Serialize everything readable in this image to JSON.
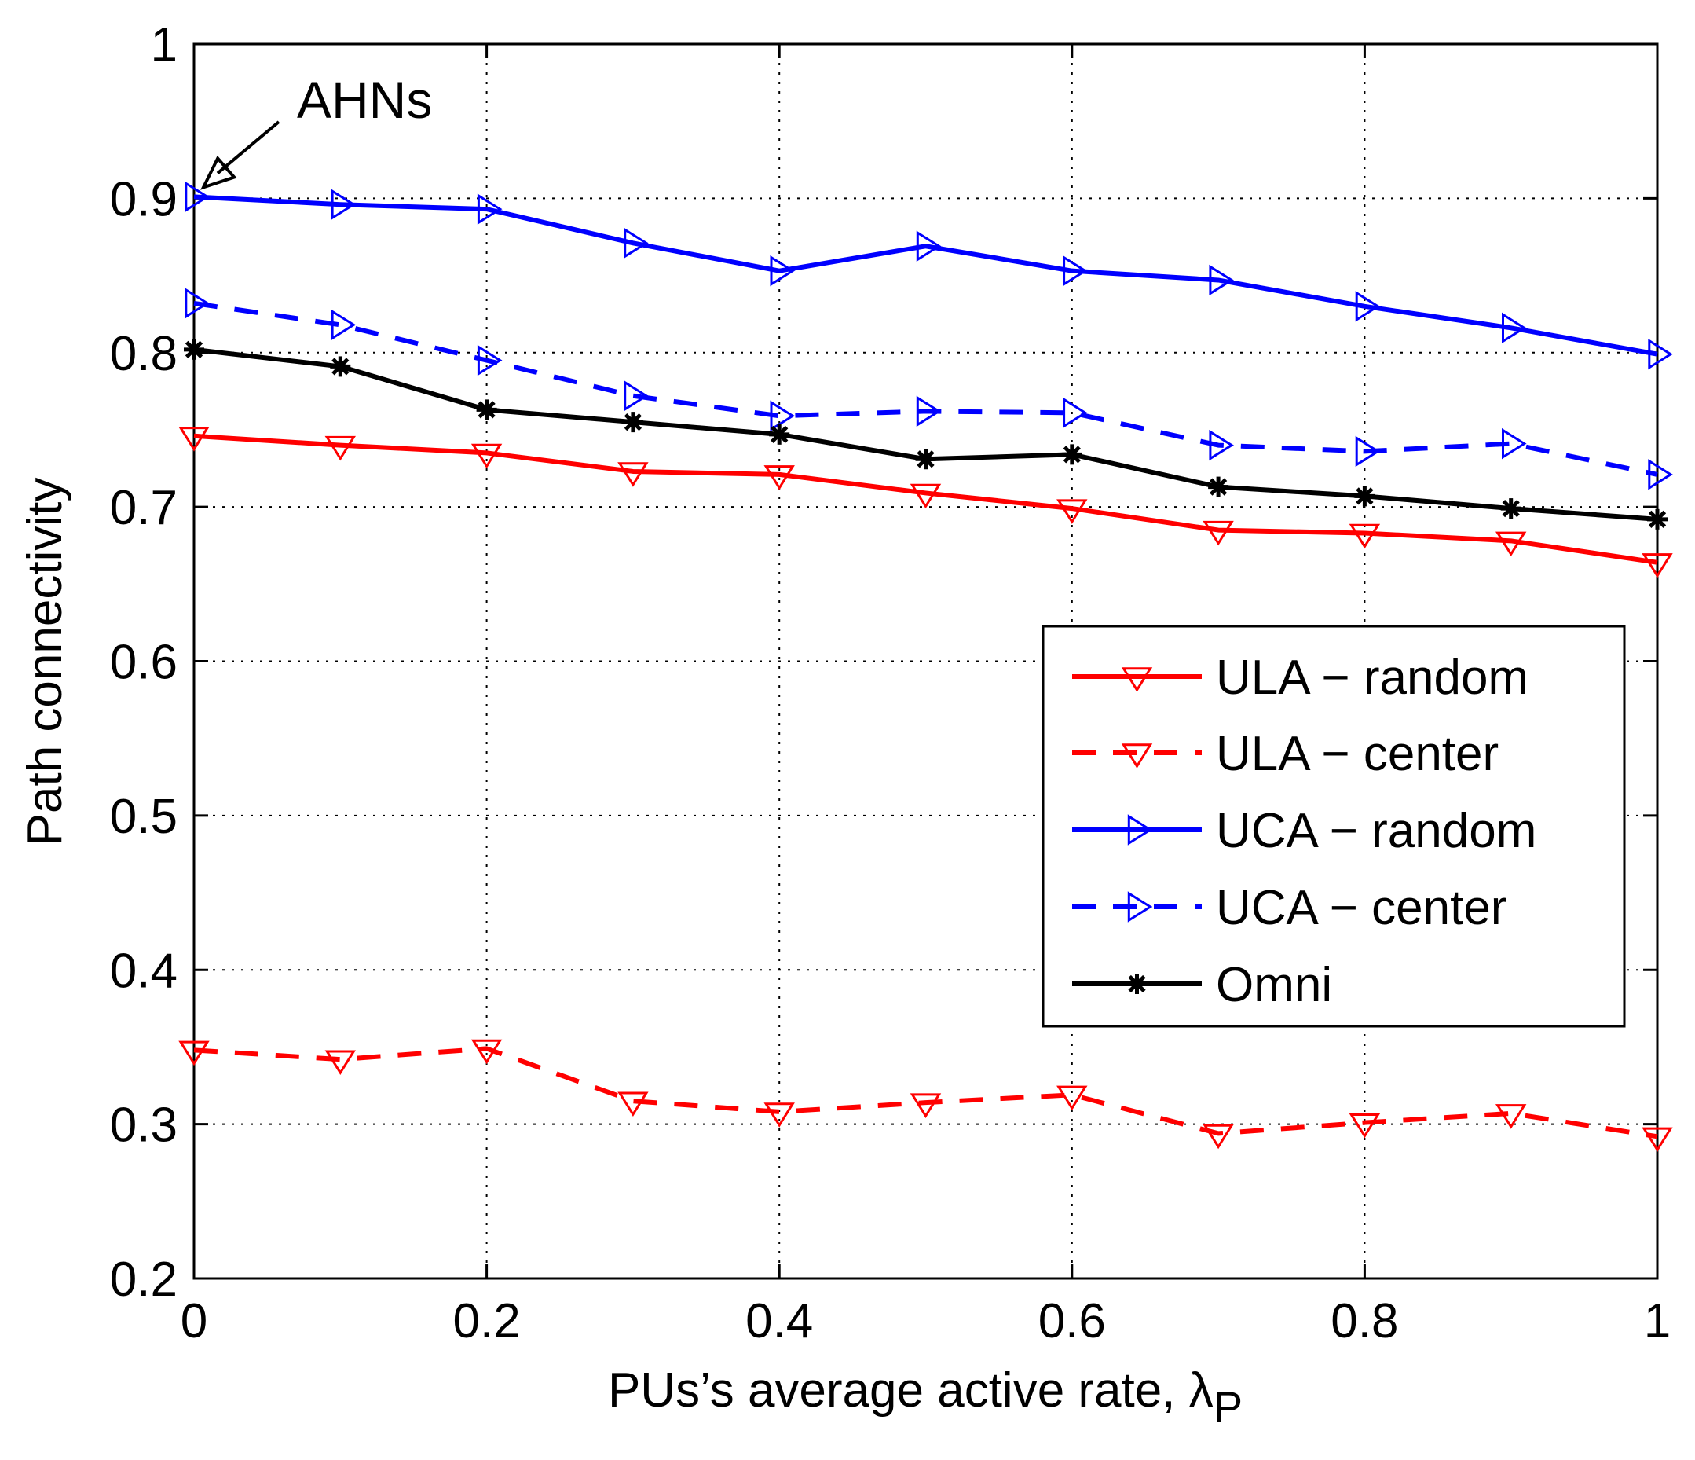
{
  "chart_data": {
    "type": "line",
    "title": "",
    "xlabel": "PUs’s average active rate, λ",
    "xlabel_subscript": "P",
    "ylabel": "Path connectivity",
    "xlim": [
      0,
      1
    ],
    "ylim": [
      0.2,
      1
    ],
    "xticks": [
      0,
      0.2,
      0.4,
      0.6,
      0.8,
      1
    ],
    "xtick_labels": [
      "0",
      "0.2",
      "0.4",
      "0.6",
      "0.8",
      "1"
    ],
    "yticks": [
      0.2,
      0.3,
      0.4,
      0.5,
      0.6,
      0.7,
      0.8,
      0.9,
      1
    ],
    "ytick_labels": [
      "0.2",
      "0.3",
      "0.4",
      "0.5",
      "0.6",
      "0.7",
      "0.8",
      "0.9",
      "1"
    ],
    "grid": true,
    "legend_position": "center-right",
    "x": [
      0,
      0.1,
      0.2,
      0.3,
      0.4,
      0.5,
      0.6,
      0.7,
      0.8,
      0.9,
      1.0
    ],
    "series": [
      {
        "name": "ULA − random",
        "color": "#ff0000",
        "line": "solid",
        "marker": "triangle-down",
        "values": [
          0.746,
          0.74,
          0.735,
          0.723,
          0.721,
          0.709,
          0.699,
          0.685,
          0.683,
          0.678,
          0.664
        ]
      },
      {
        "name": "ULA − center",
        "color": "#ff0000",
        "line": "dashed",
        "marker": "triangle-down",
        "values": [
          0.348,
          0.342,
          0.349,
          0.315,
          0.308,
          0.314,
          0.319,
          0.294,
          0.301,
          0.307,
          0.292
        ]
      },
      {
        "name": "UCA − random",
        "color": "#0000ff",
        "line": "solid",
        "marker": "triangle-right",
        "values": [
          0.901,
          0.896,
          0.893,
          0.871,
          0.853,
          0.869,
          0.853,
          0.847,
          0.83,
          0.816,
          0.799
        ]
      },
      {
        "name": "UCA − center",
        "color": "#0000ff",
        "line": "dashed",
        "marker": "triangle-right",
        "values": [
          0.832,
          0.818,
          0.795,
          0.772,
          0.759,
          0.762,
          0.761,
          0.74,
          0.736,
          0.741,
          0.721
        ]
      },
      {
        "name": "Omni",
        "color": "#000000",
        "line": "solid",
        "marker": "asterisk",
        "values": [
          0.802,
          0.791,
          0.763,
          0.755,
          0.747,
          0.731,
          0.734,
          0.713,
          0.707,
          0.699,
          0.692
        ]
      }
    ],
    "annotations": [
      {
        "text": "AHNs",
        "x": 0,
        "y": 0.901
      }
    ]
  }
}
